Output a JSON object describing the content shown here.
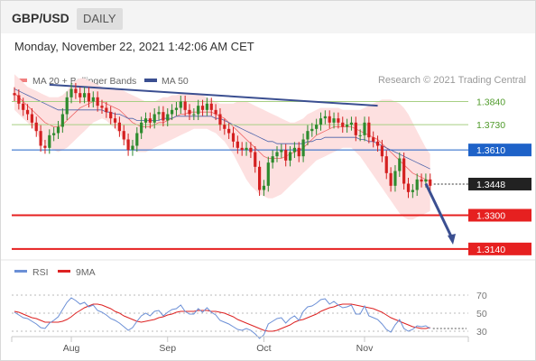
{
  "header": {
    "pair": "GBP/USD",
    "timeframe": "DAILY"
  },
  "timestamp": "Monday, November 22, 2021 1:42:06 AM CET",
  "copyright": "Research © 2021 Trading Central",
  "colors": {
    "bull": "#2e8b2e",
    "bear": "#d42020",
    "bbFill": "#fde0e0",
    "ma20": "#ee6666",
    "ma50": "#4a62aa",
    "trend": "#3b4f91",
    "resistance": "#a7cf83",
    "support": "#e62020",
    "pivot": "#1e62c8",
    "last": "#222222",
    "rsi": "#6b8fd6",
    "rsiMa": "#dd2222"
  },
  "chart_data": [
    {
      "type": "candlestick",
      "title": "GBP/USD",
      "timeframe": "DAILY",
      "ylim": [
        1.3075,
        1.3975
      ],
      "legend": [
        {
          "label": "MA 20 + Bollinger Bands",
          "color": "#f08080"
        },
        {
          "label": "MA 50",
          "color": "#3b4f91"
        }
      ],
      "x_labels": [
        {
          "label": "Aug",
          "i": 13
        },
        {
          "label": "Sep",
          "i": 35
        },
        {
          "label": "Oct",
          "i": 57
        },
        {
          "label": "Nov",
          "i": 80
        }
      ],
      "levels": [
        {
          "label": "1.3840",
          "value": 1.384,
          "kind": "resistance"
        },
        {
          "label": "1.3730",
          "value": 1.373,
          "kind": "resistance"
        },
        {
          "label": "1.3610",
          "value": 1.361,
          "kind": "pivot"
        },
        {
          "label": "1.3448",
          "value": 1.3448,
          "kind": "last"
        },
        {
          "label": "1.3300",
          "value": 1.33,
          "kind": "support"
        },
        {
          "label": "1.3140",
          "value": 1.314,
          "kind": "support"
        }
      ],
      "trendline": {
        "from": [
          8,
          1.392
        ],
        "to": [
          83,
          1.382
        ]
      },
      "forecast_arrow": {
        "from": [
          94,
          1.345
        ],
        "to": [
          100,
          1.3165
        ]
      },
      "close": [
        1.387,
        1.383,
        1.38,
        1.378,
        1.374,
        1.37,
        1.363,
        1.362,
        1.368,
        1.369,
        1.372,
        1.378,
        1.386,
        1.39,
        1.388,
        1.386,
        1.388,
        1.384,
        1.386,
        1.382,
        1.381,
        1.379,
        1.376,
        1.374,
        1.37,
        1.366,
        1.361,
        1.363,
        1.369,
        1.374,
        1.376,
        1.374,
        1.378,
        1.379,
        1.375,
        1.378,
        1.38,
        1.381,
        1.384,
        1.38,
        1.378,
        1.378,
        1.382,
        1.38,
        1.383,
        1.38,
        1.378,
        1.373,
        1.371,
        1.369,
        1.365,
        1.362,
        1.361,
        1.362,
        1.36,
        1.353,
        1.342,
        1.344,
        1.355,
        1.358,
        1.36,
        1.361,
        1.356,
        1.36,
        1.362,
        1.358,
        1.366,
        1.37,
        1.371,
        1.373,
        1.376,
        1.377,
        1.374,
        1.376,
        1.374,
        1.372,
        1.373,
        1.374,
        1.368,
        1.368,
        1.374,
        1.367,
        1.365,
        1.363,
        1.358,
        1.35,
        1.344,
        1.351,
        1.357,
        1.345,
        1.341,
        1.342,
        1.347,
        1.346,
        1.347,
        1.344
      ],
      "ma20": [
        1.388,
        1.386,
        1.384,
        1.382,
        1.38,
        1.378,
        1.376,
        1.374,
        1.373,
        1.372,
        1.372,
        1.373,
        1.375,
        1.377,
        1.379,
        1.381,
        1.382,
        1.383,
        1.384,
        1.384,
        1.384,
        1.383,
        1.382,
        1.381,
        1.38,
        1.378,
        1.376,
        1.374,
        1.373,
        1.372,
        1.372,
        1.372,
        1.373,
        1.374,
        1.374,
        1.375,
        1.376,
        1.377,
        1.378,
        1.378,
        1.379,
        1.379,
        1.379,
        1.379,
        1.379,
        1.379,
        1.378,
        1.377,
        1.376,
        1.374,
        1.372,
        1.37,
        1.368,
        1.366,
        1.364,
        1.362,
        1.36,
        1.358,
        1.357,
        1.357,
        1.357,
        1.357,
        1.358,
        1.359,
        1.36,
        1.361,
        1.362,
        1.364,
        1.366,
        1.368,
        1.369,
        1.37,
        1.371,
        1.372,
        1.372,
        1.372,
        1.372,
        1.372,
        1.371,
        1.37,
        1.369,
        1.368,
        1.367,
        1.366,
        1.364,
        1.362,
        1.36,
        1.358,
        1.356,
        1.354,
        1.352,
        1.35,
        1.349,
        1.348,
        1.347,
        1.346
      ],
      "bb_upper": [
        1.397,
        1.395,
        1.393,
        1.391,
        1.39,
        1.389,
        1.388,
        1.387,
        1.386,
        1.386,
        1.386,
        1.387,
        1.389,
        1.392,
        1.394,
        1.395,
        1.395,
        1.394,
        1.393,
        1.392,
        1.391,
        1.39,
        1.39,
        1.39,
        1.39,
        1.389,
        1.388,
        1.387,
        1.386,
        1.385,
        1.384,
        1.384,
        1.384,
        1.385,
        1.386,
        1.386,
        1.387,
        1.387,
        1.388,
        1.388,
        1.388,
        1.388,
        1.388,
        1.387,
        1.386,
        1.385,
        1.384,
        1.383,
        1.383,
        1.383,
        1.383,
        1.384,
        1.384,
        1.384,
        1.383,
        1.382,
        1.381,
        1.38,
        1.379,
        1.378,
        1.377,
        1.376,
        1.375,
        1.374,
        1.374,
        1.375,
        1.376,
        1.378,
        1.379,
        1.38,
        1.381,
        1.381,
        1.381,
        1.381,
        1.381,
        1.38,
        1.38,
        1.38,
        1.38,
        1.38,
        1.381,
        1.382,
        1.383,
        1.384,
        1.385,
        1.385,
        1.385,
        1.384,
        1.383,
        1.381,
        1.378,
        1.374,
        1.37,
        1.366,
        1.362,
        1.359
      ],
      "bb_lower": [
        1.38,
        1.378,
        1.376,
        1.374,
        1.372,
        1.369,
        1.366,
        1.364,
        1.362,
        1.361,
        1.36,
        1.361,
        1.362,
        1.364,
        1.366,
        1.368,
        1.37,
        1.372,
        1.374,
        1.375,
        1.376,
        1.375,
        1.373,
        1.371,
        1.369,
        1.366,
        1.363,
        1.361,
        1.36,
        1.36,
        1.36,
        1.361,
        1.362,
        1.363,
        1.364,
        1.365,
        1.366,
        1.367,
        1.368,
        1.369,
        1.37,
        1.371,
        1.371,
        1.371,
        1.371,
        1.37,
        1.369,
        1.367,
        1.365,
        1.362,
        1.359,
        1.355,
        1.351,
        1.347,
        1.344,
        1.342,
        1.34,
        1.339,
        1.338,
        1.338,
        1.339,
        1.34,
        1.342,
        1.344,
        1.346,
        1.348,
        1.35,
        1.352,
        1.354,
        1.356,
        1.357,
        1.358,
        1.359,
        1.36,
        1.361,
        1.362,
        1.362,
        1.362,
        1.36,
        1.358,
        1.355,
        1.352,
        1.349,
        1.346,
        1.343,
        1.34,
        1.337,
        1.334,
        1.331,
        1.329,
        1.328,
        1.328,
        1.329,
        1.33,
        1.331,
        1.332
      ],
      "ma50": [
        1.39,
        1.389,
        1.388,
        1.387,
        1.386,
        1.385,
        1.384,
        1.383,
        1.382,
        1.381,
        1.38,
        1.38,
        1.38,
        1.38,
        1.38,
        1.38,
        1.38,
        1.38,
        1.38,
        1.38,
        1.38,
        1.379,
        1.379,
        1.378,
        1.378,
        1.377,
        1.376,
        1.376,
        1.375,
        1.375,
        1.375,
        1.375,
        1.375,
        1.375,
        1.376,
        1.376,
        1.376,
        1.377,
        1.377,
        1.377,
        1.377,
        1.377,
        1.377,
        1.377,
        1.377,
        1.377,
        1.376,
        1.376,
        1.375,
        1.374,
        1.373,
        1.372,
        1.371,
        1.37,
        1.369,
        1.368,
        1.367,
        1.366,
        1.365,
        1.365,
        1.364,
        1.364,
        1.364,
        1.364,
        1.364,
        1.364,
        1.364,
        1.365,
        1.365,
        1.366,
        1.366,
        1.367,
        1.367,
        1.367,
        1.367,
        1.367,
        1.367,
        1.367,
        1.367,
        1.366,
        1.366,
        1.365,
        1.365,
        1.364,
        1.363,
        1.362,
        1.361,
        1.36,
        1.359,
        1.358,
        1.357,
        1.356,
        1.355,
        1.354,
        1.353,
        1.352
      ]
    },
    {
      "type": "line",
      "title": "RSI",
      "ylim": [
        20,
        80
      ],
      "yticks": [
        30,
        50,
        70
      ],
      "legend": [
        {
          "label": "RSI",
          "color": "#6b8fd6"
        },
        {
          "label": "9MA",
          "color": "#dd2222"
        }
      ],
      "rsi": [
        51,
        48,
        45,
        44,
        41,
        38,
        34,
        33,
        39,
        42,
        46,
        54,
        62,
        67,
        64,
        60,
        62,
        57,
        59,
        53,
        51,
        48,
        44,
        42,
        39,
        35,
        31,
        34,
        41,
        47,
        50,
        47,
        52,
        53,
        47,
        51,
        54,
        55,
        59,
        52,
        49,
        49,
        55,
        51,
        56,
        51,
        48,
        42,
        40,
        38,
        35,
        32,
        31,
        33,
        31,
        27,
        22,
        26,
        38,
        41,
        44,
        45,
        39,
        44,
        47,
        42,
        52,
        57,
        58,
        61,
        65,
        66,
        60,
        63,
        59,
        56,
        57,
        59,
        49,
        49,
        58,
        47,
        45,
        43,
        38,
        32,
        29,
        37,
        43,
        33,
        30,
        32,
        36,
        35,
        36,
        33
      ],
      "ma9": [
        52,
        51,
        49,
        47,
        45,
        44,
        42,
        40,
        40,
        40,
        40,
        41,
        43,
        46,
        50,
        53,
        56,
        58,
        60,
        60,
        59,
        57,
        55,
        52,
        50,
        47,
        45,
        43,
        41,
        40,
        41,
        42,
        43,
        45,
        46,
        48,
        49,
        51,
        52,
        52,
        52,
        52,
        53,
        53,
        53,
        52,
        52,
        51,
        50,
        48,
        46,
        43,
        41,
        39,
        37,
        35,
        33,
        31,
        30,
        30,
        31,
        33,
        35,
        37,
        40,
        42,
        43,
        45,
        47,
        49,
        52,
        54,
        56,
        57,
        59,
        60,
        60,
        60,
        59,
        58,
        57,
        56,
        55,
        53,
        51,
        48,
        45,
        43,
        41,
        39,
        37,
        35,
        34,
        33,
        33,
        34
      ]
    }
  ]
}
